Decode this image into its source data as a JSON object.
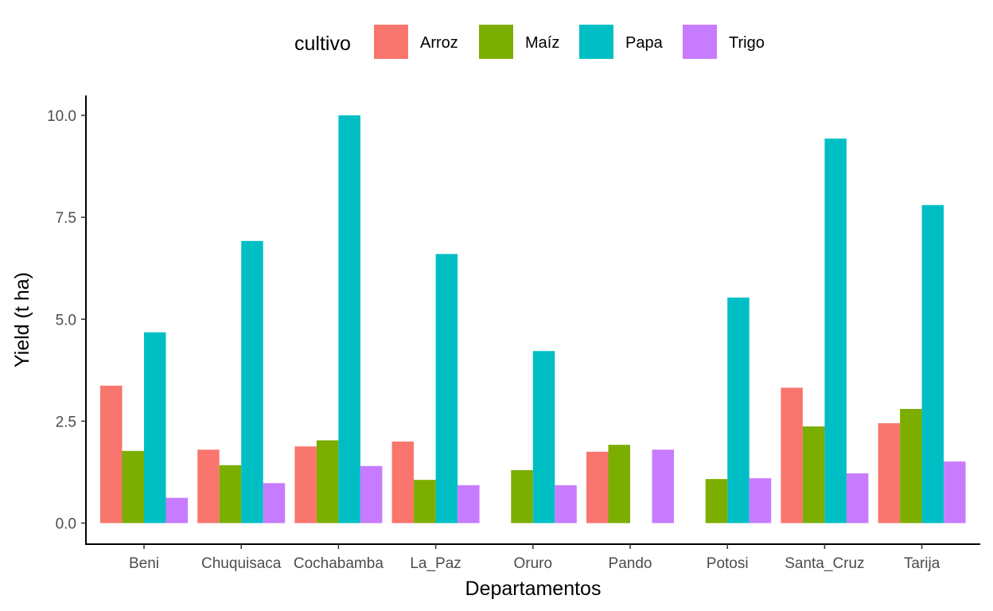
{
  "chart_data": {
    "type": "bar",
    "xlabel": "Departamentos",
    "ylabel": "Yield (t ha)",
    "ylim": [
      0,
      10.5
    ],
    "yticks": [
      "0.0",
      "2.5",
      "5.0",
      "7.5",
      "10.0"
    ],
    "ytick_values": [
      0,
      2.5,
      5,
      7.5,
      10
    ],
    "grid": false,
    "legend": {
      "title": "cultivo",
      "position": "top"
    },
    "categories": [
      "Beni",
      "Chuquisaca",
      "Cochabamba",
      "La_Paz",
      "Oruro",
      "Pando",
      "Potosi",
      "Santa_Cruz",
      "Tarija"
    ],
    "series": [
      {
        "name": "Arroz",
        "color": "#F8766D",
        "values": [
          3.37,
          1.8,
          1.88,
          2.0,
          null,
          1.75,
          null,
          3.32,
          2.45
        ]
      },
      {
        "name": "Maíz",
        "color": "#7CAE00",
        "values": [
          1.77,
          1.42,
          2.03,
          1.06,
          1.3,
          1.92,
          1.08,
          2.37,
          2.8
        ]
      },
      {
        "name": "Papa",
        "color": "#00BFC4",
        "values": [
          4.68,
          6.92,
          10.0,
          6.6,
          4.22,
          null,
          5.53,
          9.43,
          7.8
        ]
      },
      {
        "name": "Trigo",
        "color": "#C77CFF",
        "values": [
          0.62,
          0.98,
          1.4,
          0.93,
          0.93,
          1.8,
          1.1,
          1.22,
          1.51
        ]
      }
    ]
  }
}
